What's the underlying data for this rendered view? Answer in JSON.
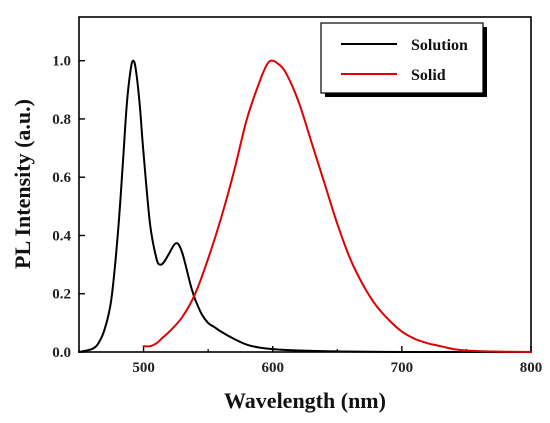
{
  "chart_data": {
    "type": "line",
    "xlabel": "Wavelength (nm)",
    "ylabel": "PL Intensity (a.u.)",
    "xlim": [
      450,
      800
    ],
    "ylim": [
      0,
      1.15
    ],
    "xticks": [
      500,
      600,
      700,
      800
    ],
    "yticks": [
      0.0,
      0.2,
      0.4,
      0.6,
      0.8,
      1.0
    ],
    "xtick_labels": [
      "500",
      "600",
      "700",
      "800"
    ],
    "ytick_labels": [
      "0.0",
      "0.2",
      "0.4",
      "0.6",
      "0.8",
      "1.0"
    ],
    "grid": false,
    "legend_position": "top-right",
    "series": [
      {
        "name": "Solution",
        "color": "#000000",
        "x": [
          450,
          460,
          465,
          470,
          475,
          480,
          484,
          487,
          490,
          492,
          494,
          497,
          500,
          505,
          510,
          513,
          516,
          520,
          524,
          527,
          530,
          533,
          537,
          540,
          545,
          550,
          555,
          560,
          570,
          580,
          590,
          600,
          620,
          650,
          700,
          800
        ],
        "y": [
          0.0,
          0.01,
          0.03,
          0.08,
          0.18,
          0.4,
          0.65,
          0.85,
          0.97,
          1.0,
          0.97,
          0.85,
          0.68,
          0.44,
          0.32,
          0.3,
          0.31,
          0.34,
          0.37,
          0.37,
          0.34,
          0.29,
          0.22,
          0.18,
          0.13,
          0.1,
          0.085,
          0.07,
          0.045,
          0.025,
          0.015,
          0.01,
          0.005,
          0.002,
          0.0,
          0.0
        ]
      },
      {
        "name": "Solid",
        "color": "#e00000",
        "x": [
          500,
          505,
          510,
          515,
          520,
          530,
          540,
          550,
          560,
          570,
          580,
          590,
          596,
          600,
          604,
          610,
          620,
          630,
          640,
          650,
          660,
          670,
          680,
          690,
          700,
          710,
          720,
          730,
          740,
          750,
          760,
          780,
          800
        ],
        "y": [
          0.02,
          0.02,
          0.03,
          0.05,
          0.07,
          0.12,
          0.2,
          0.32,
          0.46,
          0.62,
          0.8,
          0.93,
          0.99,
          1.0,
          0.99,
          0.96,
          0.86,
          0.72,
          0.58,
          0.44,
          0.32,
          0.23,
          0.16,
          0.11,
          0.07,
          0.045,
          0.03,
          0.02,
          0.01,
          0.005,
          0.003,
          0.001,
          0.0
        ]
      }
    ]
  }
}
